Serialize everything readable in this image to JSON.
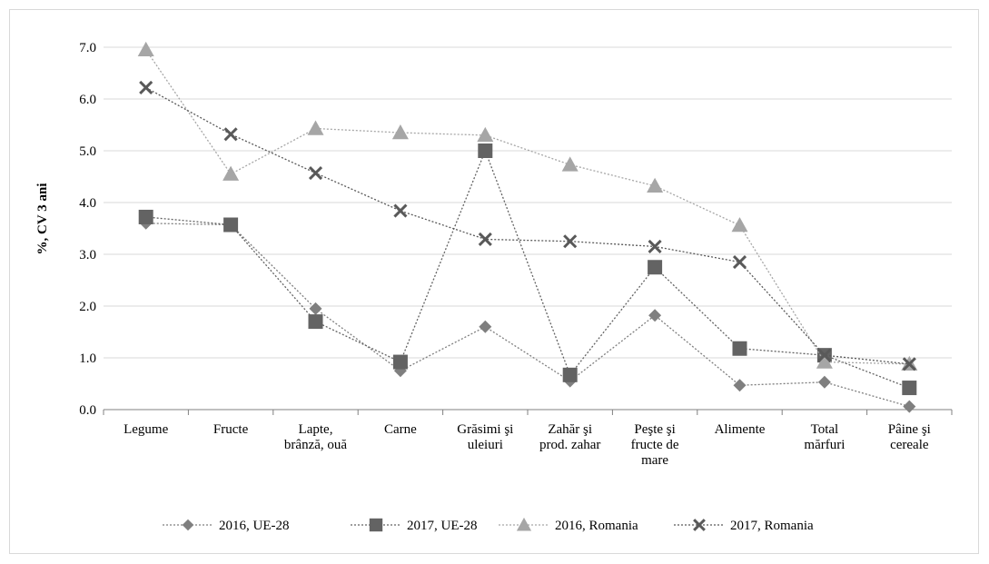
{
  "chart_data": {
    "type": "line",
    "title": "",
    "xlabel": "",
    "ylabel": "%, CV 3 ani",
    "ylim": [
      0,
      7
    ],
    "yticks": [
      "0.0",
      "1.0",
      "2.0",
      "3.0",
      "4.0",
      "5.0",
      "6.0",
      "7.0"
    ],
    "grid": "horizontal",
    "legend_position": "bottom",
    "categories": [
      [
        "Legume"
      ],
      [
        "Fructe"
      ],
      [
        "Lapte,",
        "brânză, ouă"
      ],
      [
        "Carne"
      ],
      [
        "Grăsimi şi",
        "uleiuri"
      ],
      [
        "Zahăr şi",
        "prod. zahar"
      ],
      [
        "Peşte şi",
        "fructe de",
        "mare"
      ],
      [
        "Alimente"
      ],
      [
        "Total",
        "mărfuri"
      ],
      [
        "Pâine şi",
        "cereale"
      ]
    ],
    "series": [
      {
        "name": "2016, UE-28",
        "marker": "diamond",
        "color": "#7f7f7f",
        "values": [
          3.6,
          3.57,
          1.95,
          0.75,
          1.6,
          0.55,
          1.82,
          0.47,
          0.53,
          0.06
        ]
      },
      {
        "name": "2017, UE-28",
        "marker": "square",
        "color": "#636363",
        "values": [
          3.72,
          3.57,
          1.7,
          0.92,
          5.0,
          0.67,
          2.75,
          1.18,
          1.05,
          0.42
        ]
      },
      {
        "name": "2016, Romania",
        "marker": "triangle",
        "color": "#a6a6a6",
        "values": [
          6.95,
          4.55,
          5.43,
          5.35,
          5.3,
          4.73,
          4.32,
          3.56,
          0.92,
          0.88
        ]
      },
      {
        "name": "2017, Romania",
        "marker": "x",
        "color": "#595959",
        "values": [
          6.22,
          5.32,
          4.57,
          3.84,
          3.29,
          3.25,
          3.15,
          2.85,
          1.05,
          0.88
        ]
      }
    ]
  }
}
